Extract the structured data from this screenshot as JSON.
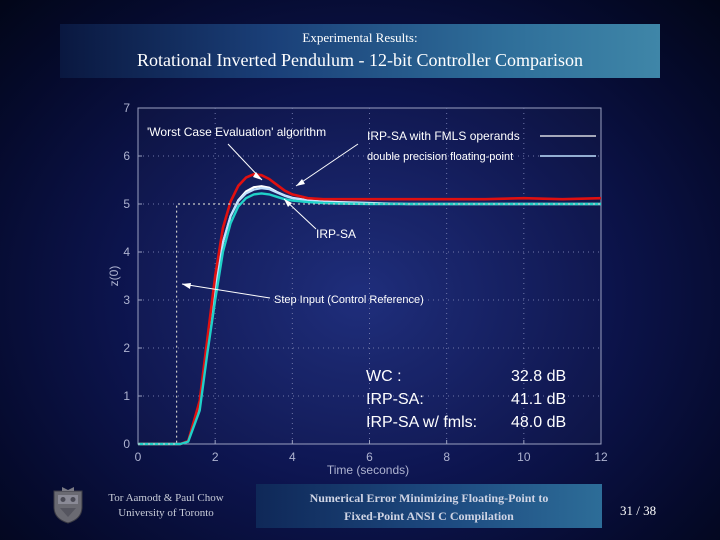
{
  "header": {
    "supertitle": "Experimental Results:",
    "title": "Rotational Inverted Pendulum - 12-bit Controller Comparison"
  },
  "chart_data": {
    "type": "line",
    "xlabel": "Time (seconds)",
    "ylabel": "z(0)",
    "xlim": [
      0,
      12
    ],
    "ylim": [
      0,
      7
    ],
    "xticks": [
      "0",
      "2",
      "4",
      "6",
      "8",
      "10",
      "12"
    ],
    "yticks": [
      "0",
      "1",
      "2",
      "3",
      "4",
      "5",
      "6",
      "7"
    ],
    "grid": "dotted",
    "legend_placement": "top-right",
    "series": [
      {
        "name": "IRP-SA with FMLS operands",
        "color": "#ffffff",
        "x": [
          0,
          1.1,
          1.3,
          1.6,
          1.8,
          2.0,
          2.2,
          2.4,
          2.6,
          2.8,
          3.0,
          3.2,
          3.4,
          3.6,
          3.8,
          4.0,
          4.4,
          4.8,
          5.2,
          6,
          7,
          8,
          9,
          10,
          11,
          12
        ],
        "y": [
          0,
          0,
          0.06,
          0.8,
          2.0,
          3.2,
          4.2,
          4.75,
          5.08,
          5.26,
          5.35,
          5.37,
          5.34,
          5.25,
          5.18,
          5.13,
          5.08,
          5.05,
          5.04,
          5.02,
          5.0,
          5.0,
          5.0,
          5.0,
          5.0,
          5.0
        ]
      },
      {
        "name": "double precision floating-point",
        "color": "#bfe0ff",
        "x": [
          0,
          1.1,
          1.3,
          1.6,
          1.8,
          2.0,
          2.2,
          2.4,
          2.6,
          2.8,
          3.0,
          3.2,
          3.4,
          3.6,
          3.8,
          4.0,
          4.4,
          4.8,
          5.2,
          6,
          7,
          8,
          9,
          10,
          11,
          12
        ],
        "y": [
          0,
          0,
          0.06,
          0.8,
          2.0,
          3.2,
          4.2,
          4.75,
          5.06,
          5.22,
          5.3,
          5.33,
          5.31,
          5.24,
          5.17,
          5.12,
          5.07,
          5.04,
          5.03,
          5.01,
          5.0,
          5.0,
          5.0,
          5.0,
          5.0,
          5.0
        ]
      },
      {
        "name": "Worst Case Evaluation algorithm",
        "color": "#e01010",
        "x": [
          0,
          1.1,
          1.3,
          1.6,
          1.8,
          2.0,
          2.2,
          2.4,
          2.6,
          2.8,
          3.0,
          3.2,
          3.4,
          3.6,
          3.8,
          4.0,
          4.4,
          4.8,
          5.2,
          6,
          7,
          8,
          9,
          10,
          11,
          12
        ],
        "y": [
          0,
          0,
          0.06,
          0.9,
          2.2,
          3.5,
          4.5,
          5.05,
          5.38,
          5.55,
          5.62,
          5.6,
          5.52,
          5.4,
          5.28,
          5.2,
          5.12,
          5.1,
          5.1,
          5.1,
          5.1,
          5.1,
          5.1,
          5.12,
          5.1,
          5.12
        ]
      },
      {
        "name": "IRP-SA",
        "color": "#20d0c8",
        "x": [
          0,
          1.1,
          1.3,
          1.6,
          1.8,
          2.0,
          2.2,
          2.4,
          2.6,
          2.8,
          3.0,
          3.2,
          3.4,
          3.6,
          3.8,
          4.0,
          4.4,
          4.8,
          5.2,
          6,
          7,
          8,
          9,
          10,
          11,
          12
        ],
        "y": [
          0,
          0,
          0.05,
          0.7,
          1.9,
          3.0,
          4.0,
          4.6,
          4.95,
          5.12,
          5.2,
          5.22,
          5.2,
          5.15,
          5.1,
          5.07,
          5.04,
          5.02,
          5.01,
          5.0,
          5.0,
          5.0,
          5.0,
          5.0,
          5.0,
          5.0
        ]
      },
      {
        "name": "Step Input (Control Reference)",
        "color": "#c8c8c8",
        "style": "dotted",
        "x": [
          0,
          1.0,
          1.0,
          12
        ],
        "y": [
          0,
          0,
          5,
          5
        ]
      }
    ],
    "annotations": [
      "'Worst Case Evaluation' algorithm",
      "IRP-SA with FMLS operands",
      "double precision floating-point",
      "IRP-SA",
      "Step Input (Control Reference)"
    ],
    "snr_table": [
      {
        "label": "WC :",
        "value": "32.8 dB"
      },
      {
        "label": "IRP-SA:",
        "value": "41.1 dB"
      },
      {
        "label": "IRP-SA w/ fmls:",
        "value": "48.0 dB"
      }
    ]
  },
  "footer": {
    "author_line1": "Tor Aamodt & Paul Chow",
    "author_line2": "University of Toronto",
    "topic_line1": "Numerical Error Minimizing Floating-Point to",
    "topic_line2": "Fixed-Point ANSI C Compilation",
    "page": "31 / 38"
  },
  "icons": {
    "crest": "university-crest-icon"
  }
}
